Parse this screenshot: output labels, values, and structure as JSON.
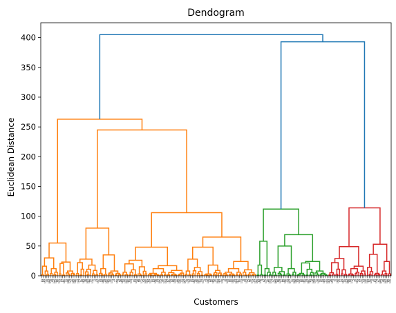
{
  "chart_data": {
    "type": "dendrogram",
    "title": "Dendogram",
    "xlabel": "Customers",
    "ylabel": "Euclidean Distance",
    "ylim": [
      0,
      425
    ],
    "yticks": [
      0,
      50,
      100,
      150,
      200,
      250,
      300,
      350,
      400
    ],
    "grid": false,
    "leaf_count": 200,
    "colors": {
      "orange": "#ff7f0e",
      "green": "#2ca02c",
      "red": "#d62728",
      "blue": "#1f77b4"
    },
    "clusters": [
      {
        "color": "orange",
        "leaves": 123,
        "height": 263,
        "subclusters": [
          {
            "leaves": 20,
            "height": 55,
            "merges": [
              30,
              23,
              16,
              30,
              12,
              8,
              5,
              3
            ]
          },
          {
            "leaves": 103,
            "height": 245,
            "subclusters": [
              {
                "leaves": 26,
                "height": 80,
                "merges": [
                  28,
                  35,
                  22,
                  12,
                  18,
                  8,
                  5,
                  4
                ]
              },
              {
                "leaves": 77,
                "height": 106,
                "subclusters": [
                  {
                    "leaves": 36,
                    "height": 48,
                    "merges": [
                      26,
                      17,
                      20,
                      12,
                      15,
                      9,
                      6,
                      4,
                      3
                    ]
                  },
                  {
                    "leaves": 41,
                    "height": 65,
                    "merges": [
                      48,
                      24,
                      28,
                      12,
                      18,
                      10,
                      8,
                      6,
                      3
                    ]
                  }
                ]
              }
            ]
          }
        ]
      },
      {
        "color": "green",
        "leaves": 41,
        "height": 112,
        "subclusters": [
          {
            "leaves": 9,
            "height": 58,
            "merges": [
              18,
              12,
              8,
              5,
              3
            ]
          },
          {
            "leaves": 32,
            "height": 69,
            "merges": [
              50,
              24,
              14,
              25,
              12,
              8,
              6,
              4,
              3
            ]
          }
        ]
      },
      {
        "color": "red",
        "leaves": 36,
        "height": 114,
        "subclusters": [
          {
            "leaves": 22,
            "height": 49,
            "merges": [
              29,
              16,
              22,
              12,
              10,
              8,
              5,
              3
            ]
          },
          {
            "leaves": 14,
            "height": 53,
            "merges": [
              36,
              24,
              14,
              8,
              4
            ]
          }
        ]
      }
    ],
    "top_links": [
      {
        "color": "blue",
        "height": 393,
        "joins": [
          "green",
          "red"
        ]
      },
      {
        "color": "blue",
        "height": 405,
        "joins": [
          "orange",
          "green+red"
        ]
      }
    ]
  }
}
